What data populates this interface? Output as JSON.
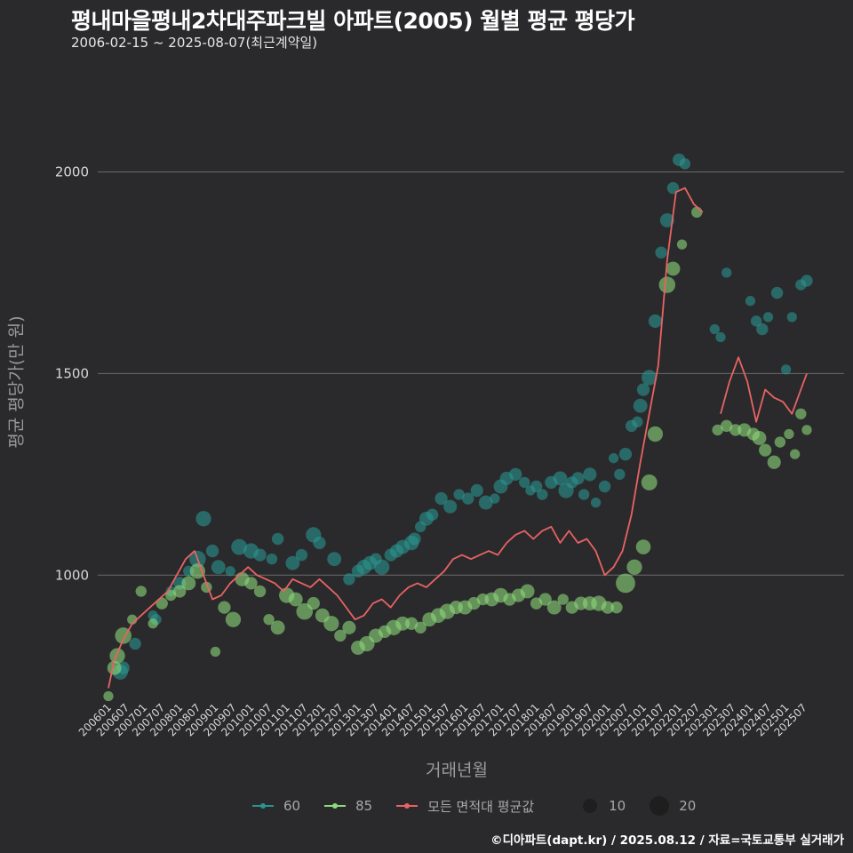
{
  "chart_data": {
    "type": "scatter",
    "title": "평내마을평내2차대주파크빌 아파트(2005) 월별 평균 평당가",
    "subtitle": "2006-02-15 ~ 2025-08-07(최근계약일)",
    "xlabel": "거래년월",
    "ylabel": "평균 평당가(만 원)",
    "yticks": [
      1000,
      1500,
      2000
    ],
    "ylim": [
      690,
      2250
    ],
    "xlim": [
      "200601",
      "202508"
    ],
    "xtick_labels": [
      "200601",
      "200607",
      "200701",
      "200707",
      "200801",
      "200807",
      "200901",
      "200907",
      "201001",
      "201007",
      "201101",
      "201107",
      "201201",
      "201207",
      "201301",
      "201307",
      "201401",
      "201407",
      "201501",
      "201507",
      "201601",
      "201607",
      "201701",
      "201707",
      "201801",
      "201807",
      "201901",
      "201907",
      "202001",
      "202007",
      "202101",
      "202107",
      "202201",
      "202207",
      "202301",
      "202307",
      "202401",
      "202407",
      "202501",
      "202507"
    ],
    "colors": {
      "s60": "#2a9490",
      "s85": "#8ed97a",
      "avg": "#e96363",
      "size_legend": "#1e1e1e"
    },
    "series": [
      {
        "name": "60",
        "x": [
          "200605",
          "200606",
          "200610",
          "200704",
          "200705",
          "200710",
          "200801",
          "200804",
          "200807",
          "200809",
          "200812",
          "200902",
          "200906",
          "200909",
          "201001",
          "201004",
          "201008",
          "201010",
          "201103",
          "201106",
          "201110",
          "201112",
          "201205",
          "201210",
          "201301",
          "201303",
          "201305",
          "201307",
          "201309",
          "201312",
          "201402",
          "201404",
          "201407",
          "201408",
          "201410",
          "201412",
          "201502",
          "201505",
          "201508",
          "201511",
          "201602",
          "201605",
          "201608",
          "201611",
          "201701",
          "201703",
          "201706",
          "201709",
          "201711",
          "201801",
          "201803",
          "201806",
          "201809",
          "201811",
          "201901",
          "201903",
          "201905",
          "201907",
          "201909",
          "201912",
          "202003",
          "202005",
          "202007",
          "202009",
          "202011",
          "202012",
          "202101",
          "202103",
          "202105",
          "202107",
          "202109",
          "202111",
          "202201",
          "202203",
          "202301",
          "202303",
          "202305",
          "202401",
          "202403",
          "202405",
          "202407",
          "202410",
          "202501",
          "202503",
          "202506",
          "202508"
        ],
        "y": [
          760,
          770,
          830,
          900,
          890,
          960,
          980,
          1010,
          1040,
          1140,
          1060,
          1020,
          1010,
          1070,
          1060,
          1050,
          1040,
          1090,
          1030,
          1050,
          1100,
          1080,
          1040,
          990,
          1010,
          1020,
          1030,
          1040,
          1020,
          1050,
          1060,
          1070,
          1080,
          1090,
          1120,
          1140,
          1150,
          1190,
          1170,
          1200,
          1190,
          1210,
          1180,
          1190,
          1220,
          1240,
          1250,
          1230,
          1210,
          1220,
          1200,
          1230,
          1240,
          1210,
          1230,
          1240,
          1200,
          1250,
          1180,
          1220,
          1290,
          1250,
          1300,
          1370,
          1380,
          1420,
          1460,
          1490,
          1630,
          1800,
          1880,
          1960,
          2030,
          2020,
          1610,
          1590,
          1750,
          1680,
          1630,
          1610,
          1640,
          1700,
          1510,
          1640,
          1720,
          1730
        ],
        "sizes": [
          10,
          6,
          5,
          3,
          4,
          3,
          6,
          4,
          12,
          10,
          6,
          8,
          3,
          11,
          10,
          6,
          4,
          5,
          8,
          5,
          10,
          6,
          8,
          5,
          6,
          9,
          8,
          5,
          10,
          6,
          7,
          8,
          9,
          6,
          4,
          8,
          5,
          6,
          7,
          4,
          5,
          6,
          8,
          3,
          8,
          7,
          6,
          4,
          3,
          5,
          4,
          6,
          8,
          10,
          5,
          6,
          4,
          7,
          3,
          5,
          3,
          4,
          6,
          5,
          4,
          8,
          6,
          10,
          7,
          5,
          8,
          5,
          6,
          4,
          3,
          3,
          3,
          3,
          4,
          5,
          3,
          5,
          3,
          3,
          4,
          5
        ]
      },
      {
        "name": "85",
        "x": [
          "200601",
          "200603",
          "200604",
          "200606",
          "200609",
          "200612",
          "200704",
          "200707",
          "200710",
          "200801",
          "200804",
          "200807",
          "200810",
          "200901",
          "200904",
          "200907",
          "200910",
          "201001",
          "201004",
          "201007",
          "201010",
          "201101",
          "201104",
          "201107",
          "201110",
          "201201",
          "201204",
          "201207",
          "201210",
          "201301",
          "201304",
          "201307",
          "201310",
          "201401",
          "201404",
          "201407",
          "201410",
          "201501",
          "201504",
          "201507",
          "201510",
          "201601",
          "201604",
          "201607",
          "201610",
          "201701",
          "201704",
          "201707",
          "201710",
          "201801",
          "201804",
          "201807",
          "201810",
          "201901",
          "201904",
          "201907",
          "201910",
          "202001",
          "202004",
          "202007",
          "202010",
          "202101",
          "202103",
          "202105",
          "202109",
          "202111",
          "202202",
          "202207",
          "202302",
          "202305",
          "202308",
          "202311",
          "202402",
          "202404",
          "202406",
          "202409",
          "202411",
          "202502",
          "202504",
          "202506",
          "202508"
        ],
        "y": [
          700,
          770,
          800,
          850,
          890,
          960,
          880,
          930,
          950,
          960,
          980,
          1010,
          970,
          810,
          920,
          890,
          990,
          980,
          960,
          890,
          870,
          950,
          940,
          910,
          930,
          900,
          880,
          850,
          870,
          820,
          830,
          850,
          860,
          870,
          880,
          880,
          870,
          890,
          900,
          910,
          920,
          920,
          930,
          940,
          940,
          950,
          940,
          950,
          960,
          930,
          940,
          920,
          940,
          920,
          930,
          930,
          930,
          920,
          920,
          980,
          1020,
          1070,
          1230,
          1350,
          1720,
          1760,
          1820,
          1900,
          1360,
          1370,
          1360,
          1360,
          1350,
          1340,
          1310,
          1280,
          1330,
          1350,
          1300,
          1400,
          1360
        ],
        "sizes": [
          3,
          8,
          10,
          12,
          3,
          4,
          3,
          5,
          4,
          6,
          8,
          10,
          4,
          3,
          6,
          10,
          8,
          6,
          5,
          4,
          8,
          10,
          8,
          12,
          6,
          8,
          10,
          5,
          7,
          8,
          10,
          8,
          6,
          10,
          8,
          6,
          5,
          8,
          9,
          10,
          7,
          8,
          6,
          5,
          8,
          9,
          6,
          7,
          8,
          5,
          6,
          8,
          4,
          6,
          7,
          8,
          10,
          6,
          5,
          18,
          10,
          9,
          11,
          10,
          12,
          8,
          3,
          4,
          4,
          5,
          5,
          7,
          6,
          8,
          6,
          7,
          4,
          3,
          3,
          4,
          3
        ]
      },
      {
        "name": "모든 면적대 평균값",
        "x": [
          "200601",
          "200603",
          "200606",
          "200609",
          "200612",
          "200703",
          "200706",
          "200709",
          "200712",
          "200803",
          "200806",
          "200809",
          "200812",
          "200903",
          "200906",
          "200909",
          "200912",
          "201003",
          "201006",
          "201009",
          "201012",
          "201103",
          "201106",
          "201109",
          "201112",
          "201203",
          "201206",
          "201209",
          "201212",
          "201303",
          "201306",
          "201309",
          "201312",
          "201403",
          "201406",
          "201409",
          "201412",
          "201503",
          "201506",
          "201509",
          "201512",
          "201603",
          "201606",
          "201609",
          "201612",
          "201703",
          "201706",
          "201709",
          "201712",
          "201803",
          "201806",
          "201809",
          "201812",
          "201903",
          "201906",
          "201909",
          "201912",
          "202003",
          "202006",
          "202009",
          "202012",
          "202103",
          "202106",
          "202109",
          "202112",
          "202203",
          "202206",
          "202209",
          "202212",
          "202303",
          "202306",
          "202309",
          "202312",
          "202403",
          "202406",
          "202409",
          "202412",
          "202503",
          "202506",
          "202508"
        ],
        "y": [
          720,
          790,
          840,
          880,
          900,
          920,
          940,
          960,
          1000,
          1040,
          1060,
          1000,
          940,
          950,
          980,
          1000,
          1020,
          1000,
          990,
          980,
          960,
          990,
          980,
          970,
          990,
          970,
          950,
          920,
          890,
          900,
          930,
          940,
          920,
          950,
          970,
          980,
          970,
          990,
          1010,
          1040,
          1050,
          1040,
          1050,
          1060,
          1050,
          1080,
          1100,
          1110,
          1090,
          1110,
          1120,
          1080,
          1110,
          1080,
          1090,
          1060,
          1000,
          1020,
          1060,
          1150,
          1280,
          1400,
          1520,
          1780,
          1950,
          1960,
          1920,
          1900,
          null,
          1400,
          1480,
          1540,
          1480,
          1380,
          1460,
          1440,
          1430,
          1400,
          1460,
          1500
        ]
      }
    ],
    "legend": [
      "60",
      "85",
      "모든 면적대 평균값"
    ],
    "size_legend": [
      "10",
      "20"
    ]
  },
  "credit": "©디아파트(dapt.kr) / 2025.08.12 / 자료=국토교통부 실거래가"
}
